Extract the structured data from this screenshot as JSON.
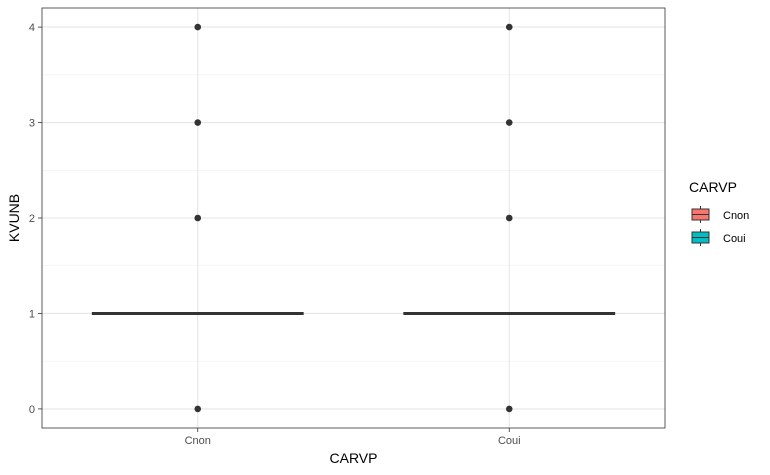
{
  "chart_data": {
    "type": "box",
    "title": "",
    "xlabel": "CARVP",
    "ylabel": "KVUNB",
    "categories": [
      "Cnon",
      "Coui"
    ],
    "ylim": [
      -0.2,
      4.2
    ],
    "yticks": [
      0,
      1,
      2,
      3,
      4
    ],
    "grid": true,
    "legend": {
      "title": "CARVP",
      "position": "right",
      "entries": [
        {
          "name": "Cnon",
          "color": "#F8766D"
        },
        {
          "name": "Coui",
          "color": "#00BFC4"
        }
      ]
    },
    "series": [
      {
        "category": "Cnon",
        "q1": 1,
        "median": 1,
        "q3": 1,
        "whisker_low": 1,
        "whisker_high": 1,
        "outliers": [
          0,
          2,
          3,
          4
        ]
      },
      {
        "category": "Coui",
        "q1": 1,
        "median": 1,
        "q3": 1,
        "whisker_low": 1,
        "whisker_high": 1,
        "outliers": [
          0,
          2,
          3,
          4
        ]
      }
    ]
  }
}
